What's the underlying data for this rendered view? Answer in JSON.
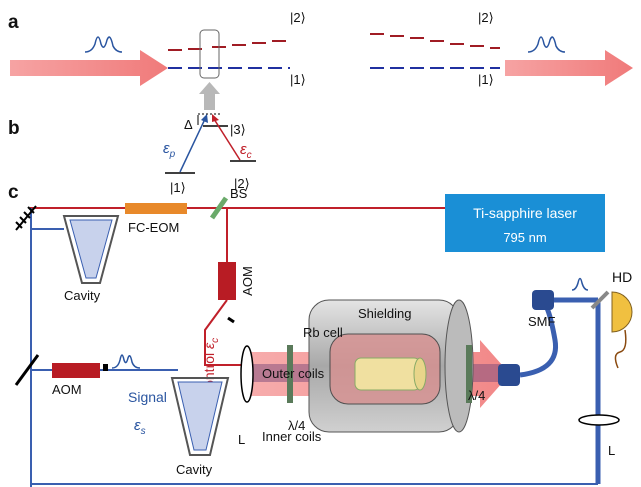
{
  "panel_a": {
    "label": "a",
    "left": {
      "upper": "|2⟩",
      "lower": "|1⟩"
    },
    "right": {
      "upper": "|2⟩",
      "lower": "|1⟩"
    }
  },
  "panel_b": {
    "label": "b",
    "delta": "Δ",
    "excited": "|3⟩",
    "probe": {
      "symbol": "ε",
      "sub": "p"
    },
    "control": {
      "symbol": "ε",
      "sub": "c"
    },
    "ground1": "|1⟩",
    "ground2": "|2⟩"
  },
  "panel_c": {
    "label": "c",
    "bs": "BS",
    "fc_eom": "FC-EOM",
    "laser": {
      "name": "Ti-sapphire laser",
      "wavelength": "795 nm"
    },
    "cavity_top": "Cavity",
    "aom_top": "AOM",
    "control": {
      "text": "Control ",
      "symbol": "ε",
      "sub": "c"
    },
    "shielding": "Shielding",
    "rb_cell": "Rb cell",
    "smf": "SMF",
    "hd": "HD",
    "outer_coils": "Outer coils",
    "inner_coils": "Inner coils",
    "aom_bottom": "AOM",
    "signal": "Signal",
    "signal_symbol": {
      "symbol": "ε",
      "sub": "s"
    },
    "cavity_bottom": "Cavity",
    "lens_left": "L",
    "qwp_left": "λ/4",
    "qwp_right": "λ/4",
    "lens_right": "L"
  }
}
